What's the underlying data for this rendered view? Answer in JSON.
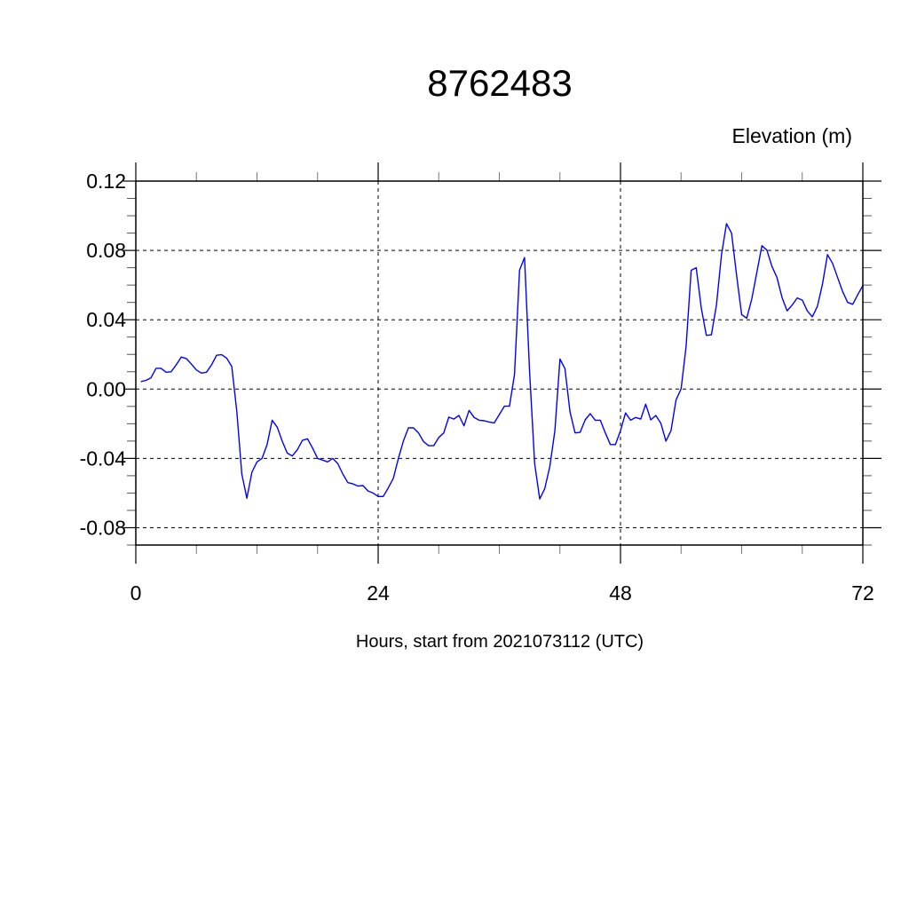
{
  "chart_data": {
    "type": "line",
    "title": "8762483",
    "subtitle": "Elevation (m)",
    "xlabel": "Hours, start from 2021073112 (UTC)",
    "ylabel": "",
    "xlim": [
      0,
      72
    ],
    "ylim": [
      -0.09,
      0.12
    ],
    "xticks": [
      0,
      24,
      48,
      72
    ],
    "xtick_labels": [
      "0",
      "24",
      "48",
      "72"
    ],
    "yticks": [
      0.12,
      0.08,
      0.04,
      0.0,
      -0.04,
      -0.08
    ],
    "ytick_labels": [
      "0.12",
      "0.08",
      "0.04",
      "0.00",
      "-0.04",
      "-0.08"
    ],
    "grid": true,
    "line_color": "#0000ff",
    "series": [
      {
        "x": [
          0.5,
          1,
          1.5,
          2,
          2.5,
          3,
          3.5,
          4,
          4.5,
          5,
          5.5,
          6,
          6.5,
          7,
          7.5,
          8,
          8.5,
          9,
          9.5,
          10,
          10.5,
          11,
          11.5,
          12,
          12.5,
          13,
          13.5,
          14,
          14.5,
          15,
          15.5,
          16,
          16.5,
          17,
          17.5,
          18,
          18.5,
          19,
          19.5,
          20,
          20.5,
          21,
          21.5,
          22,
          22.5,
          23,
          23.5,
          24,
          24.5,
          25,
          25.5,
          26,
          26.5,
          27,
          27.5,
          28,
          28.5,
          29,
          29.5,
          30,
          30.5,
          31,
          31.5,
          32,
          32.5,
          33,
          33.5,
          34,
          34.5,
          35,
          35.5,
          36,
          36.5,
          37,
          37.5,
          38,
          38.5,
          39,
          39.5,
          40,
          40.5,
          41,
          41.5,
          42,
          42.5,
          43,
          43.5,
          44,
          44.5,
          45,
          45.5,
          46,
          46.5,
          47,
          47.5,
          48,
          48.5,
          49,
          49.5,
          50,
          50.5,
          51,
          51.5,
          52,
          52.5,
          53,
          53.5,
          54,
          54.5,
          55,
          55.5,
          56,
          56.5,
          57,
          57.5,
          58,
          58.5,
          59,
          59.5,
          60,
          60.5,
          61,
          61.5,
          62,
          62.5,
          63,
          63.5,
          64,
          64.5,
          65,
          65.5,
          66,
          66.5,
          67,
          67.5,
          68,
          68.5,
          69,
          69.5,
          70,
          70.5,
          71,
          71.5,
          72
        ],
        "y": [
          0.0043,
          0.005,
          0.0065,
          0.012,
          0.012,
          0.0097,
          0.01,
          0.014,
          0.0185,
          0.0176,
          0.0144,
          0.011,
          0.0092,
          0.0097,
          0.014,
          0.0195,
          0.0198,
          0.0178,
          0.013,
          -0.013,
          -0.049,
          -0.063,
          -0.048,
          -0.042,
          -0.04,
          -0.032,
          -0.018,
          -0.022,
          -0.03,
          -0.037,
          -0.0386,
          -0.035,
          -0.0296,
          -0.0287,
          -0.034,
          -0.04,
          -0.041,
          -0.042,
          -0.04,
          -0.043,
          -0.049,
          -0.054,
          -0.0547,
          -0.056,
          -0.0557,
          -0.0588,
          -0.06,
          -0.062,
          -0.062,
          -0.057,
          -0.0515,
          -0.04,
          -0.03,
          -0.0224,
          -0.0224,
          -0.0253,
          -0.0304,
          -0.0327,
          -0.0327,
          -0.0279,
          -0.0253,
          -0.0162,
          -0.0173,
          -0.0152,
          -0.0212,
          -0.0123,
          -0.0164,
          -0.018,
          -0.0183,
          -0.019,
          -0.0195,
          -0.0147,
          -0.0099,
          -0.0099,
          0.0084,
          0.0687,
          0.0759,
          0.01,
          -0.043,
          -0.0634,
          -0.0574,
          -0.0446,
          -0.024,
          0.0173,
          0.0118,
          -0.013,
          -0.0253,
          -0.025,
          -0.0178,
          -0.0142,
          -0.018,
          -0.018,
          -0.0253,
          -0.032,
          -0.032,
          -0.024,
          -0.0138,
          -0.018,
          -0.0164,
          -0.0173,
          -0.0087,
          -0.0178,
          -0.0152,
          -0.0198,
          -0.03,
          -0.024,
          -0.0062,
          0.0002,
          0.0246,
          0.0685,
          0.07,
          0.0468,
          0.031,
          0.0313,
          0.0485,
          0.0776,
          0.0954,
          0.09,
          0.0656,
          0.0429,
          0.0409,
          0.052,
          0.0674,
          0.0827,
          0.0802,
          0.0708,
          0.0643,
          0.0528,
          0.0451,
          0.0485,
          0.0526,
          0.0513,
          0.0451,
          0.0417,
          0.0477,
          0.0605,
          0.0776,
          0.0725,
          0.0643,
          0.0562,
          0.05,
          0.0489,
          0.0545,
          0.0597
        ]
      }
    ]
  }
}
